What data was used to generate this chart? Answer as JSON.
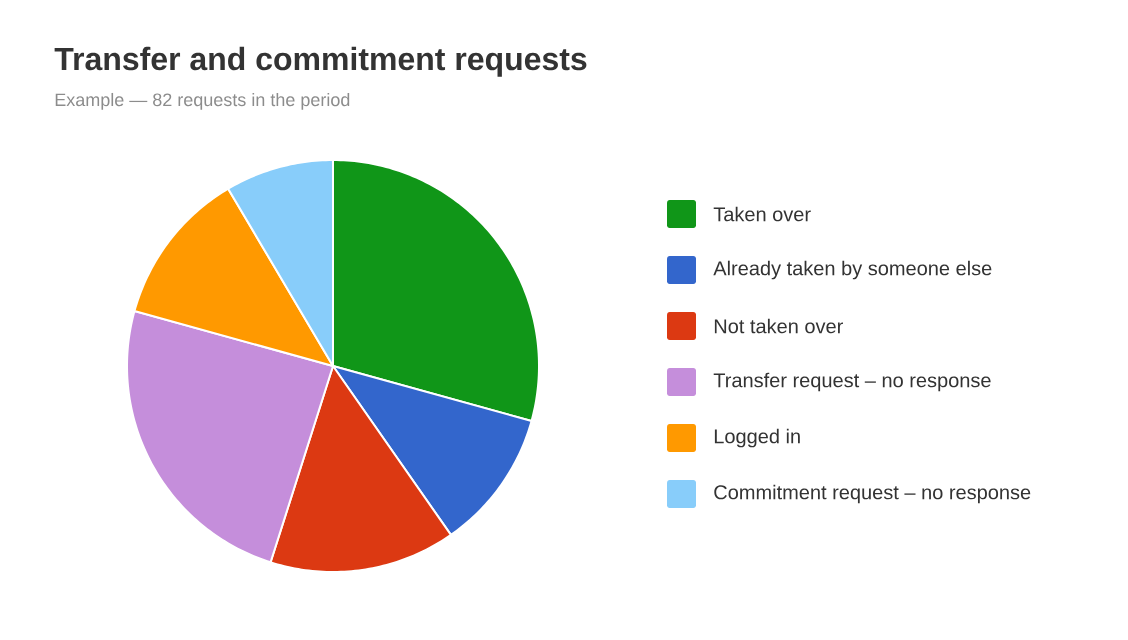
{
  "chart_data": {
    "type": "pie",
    "title": "Transfer and commitment requests",
    "subtitle": "Example — 82 requests in the period",
    "categories": [
      "Taken over",
      "Already taken by someone else",
      "Not taken over",
      "Transfer request – no response",
      "Logged in",
      "Commitment request – no response"
    ],
    "values": [
      29.3,
      11.0,
      14.6,
      24.4,
      12.2,
      8.5
    ],
    "colors": [
      "#109618",
      "#3366cc",
      "#dc3912",
      "#c58edb",
      "#ff9900",
      "#88cdfa"
    ],
    "legend": "right"
  }
}
